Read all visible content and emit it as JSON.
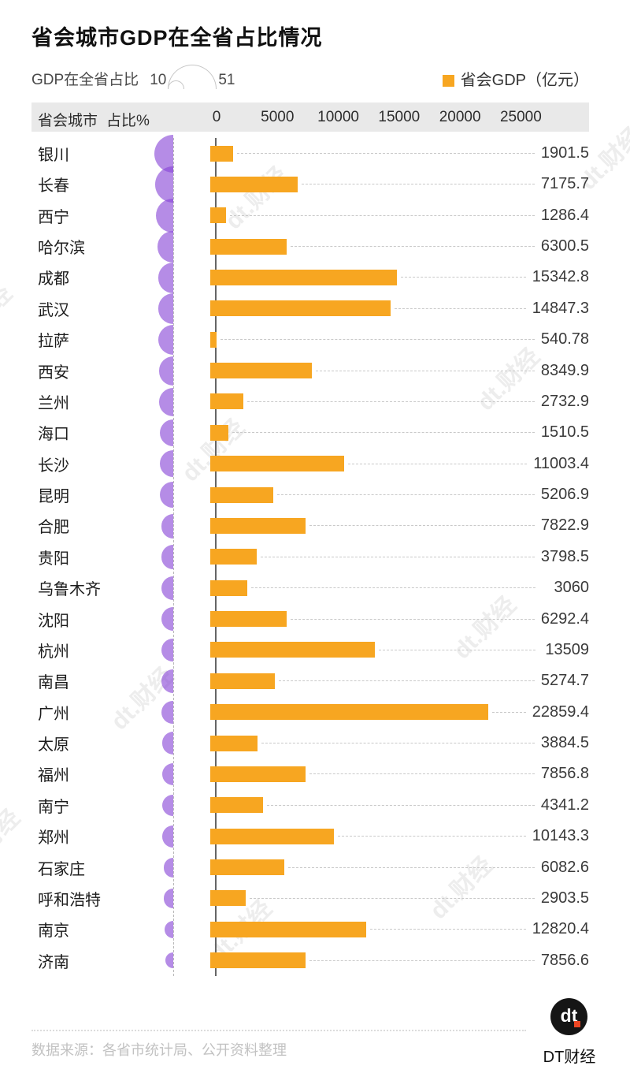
{
  "title": "省会城市GDP在全省占比情况",
  "size_legend": {
    "label": "GDP在全省占比",
    "min": "10",
    "max": "51"
  },
  "bar_legend": {
    "label": "省会GDP（亿元）",
    "color": "#f7a621"
  },
  "table_header": {
    "city": "省会城市",
    "share": "占比%"
  },
  "watermark_text": "dt.财经",
  "footer": {
    "source": "数据来源：各省市统计局、公开资料整理",
    "brand": "DT财经",
    "logo_glyph": "dt"
  },
  "colors": {
    "bar": "#f7a621",
    "bubble_base": "rgba(135,70,215,0.62)",
    "axis_line": "#666666",
    "header_bg": "#e9e9e9",
    "logo_dot": "#ee4623"
  },
  "chart_data": {
    "type": "bar",
    "title": "省会城市GDP在全省占比情况",
    "xlabel": "省会GDP（亿元）",
    "x_ticks": [
      0,
      5000,
      10000,
      15000,
      20000,
      25000
    ],
    "xlim": [
      0,
      25000
    ],
    "legend": [
      "GDP在全省占比 (气泡大小 10–51%)",
      "省会GDP（亿元）(条形)"
    ],
    "bubble_size_range_pct": [
      10,
      51
    ],
    "rows": [
      {
        "city": "银川",
        "gdp_label": "1901.5",
        "gdp": 1901.5,
        "share_pct_est": 51.3
      },
      {
        "city": "长春",
        "gdp_label": "7175.7",
        "gdp": 7175.7,
        "share_pct_est": 47.6
      },
      {
        "city": "西宁",
        "gdp_label": "1286.4",
        "gdp": 1286.4,
        "share_pct_est": 44.9
      },
      {
        "city": "哈尔滨",
        "gdp_label": "6300.5",
        "gdp": 6300.5,
        "share_pct_est": 38.5
      },
      {
        "city": "成都",
        "gdp_label": "15342.8",
        "gdp": 15342.8,
        "share_pct_est": 37.7
      },
      {
        "city": "武汉",
        "gdp_label": "14847.3",
        "gdp": 14847.3,
        "share_pct_est": 37.7
      },
      {
        "city": "拉萨",
        "gdp_label": "540.78",
        "gdp": 540.78,
        "share_pct_est": 36.6
      },
      {
        "city": "西安",
        "gdp_label": "8349.9",
        "gdp": 8349.9,
        "share_pct_est": 34.2
      },
      {
        "city": "兰州",
        "gdp_label": "2732.9",
        "gdp": 2732.9,
        "share_pct_est": 33.1
      },
      {
        "city": "海口",
        "gdp_label": "1510.5",
        "gdp": 1510.5,
        "share_pct_est": 31.3
      },
      {
        "city": "长沙",
        "gdp_label": "11003.4",
        "gdp": 11003.4,
        "share_pct_est": 30.2
      },
      {
        "city": "昆明",
        "gdp_label": "5206.9",
        "gdp": 5206.9,
        "share_pct_est": 29.1
      },
      {
        "city": "合肥",
        "gdp_label": "7822.9",
        "gdp": 7822.9,
        "share_pct_est": 26.1
      },
      {
        "city": "贵阳",
        "gdp_label": "3798.5",
        "gdp": 3798.5,
        "share_pct_est": 25.7
      },
      {
        "city": "乌鲁木齐",
        "gdp_label": "3060",
        "gdp": 3060,
        "share_pct_est": 25.1
      },
      {
        "city": "沈阳",
        "gdp_label": "6292.4",
        "gdp": 6292.4,
        "share_pct_est": 24.9
      },
      {
        "city": "杭州",
        "gdp_label": "13509",
        "gdp": 13509,
        "share_pct_est": 24.2
      },
      {
        "city": "南昌",
        "gdp_label": "5274.7",
        "gdp": 5274.7,
        "share_pct_est": 24.0
      },
      {
        "city": "广州",
        "gdp_label": "22859.4",
        "gdp": 22859.4,
        "share_pct_est": 23.5
      },
      {
        "city": "太原",
        "gdp_label": "3884.5",
        "gdp": 3884.5,
        "share_pct_est": 23.1
      },
      {
        "city": "福州",
        "gdp_label": "7856.8",
        "gdp": 7856.8,
        "share_pct_est": 21.9
      },
      {
        "city": "南宁",
        "gdp_label": "4341.2",
        "gdp": 4341.2,
        "share_pct_est": 21.3
      },
      {
        "city": "郑州",
        "gdp_label": "10143.3",
        "gdp": 10143.3,
        "share_pct_est": 21.1
      },
      {
        "city": "石家庄",
        "gdp_label": "6082.6",
        "gdp": 6082.6,
        "share_pct_est": 16.9
      },
      {
        "city": "呼和浩特",
        "gdp_label": "2903.5",
        "gdp": 2903.5,
        "share_pct_est": 16.8
      },
      {
        "city": "南京",
        "gdp_label": "12820.4",
        "gdp": 12820.4,
        "share_pct_est": 13.8
      },
      {
        "city": "济南",
        "gdp_label": "7856.6",
        "gdp": 7856.6,
        "share_pct_est": 10.3
      }
    ]
  }
}
